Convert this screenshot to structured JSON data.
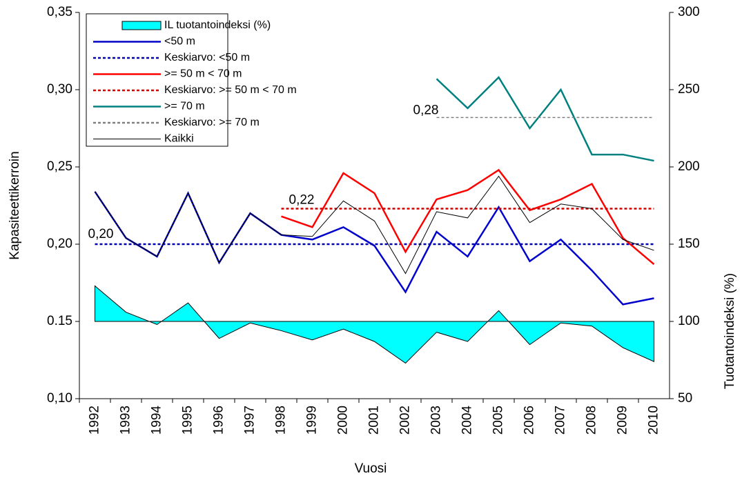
{
  "chart_data": {
    "type": "line",
    "categories": [
      "1992",
      "1993",
      "1994",
      "1995",
      "1996",
      "1997",
      "1998",
      "1999",
      "2000",
      "2001",
      "2002",
      "2003",
      "2004",
      "2005",
      "2006",
      "2007",
      "2008",
      "2009",
      "2010"
    ],
    "ylabel": "Kapasiteettikerroin",
    "y2label": "Tuotantoindeksi (%)",
    "xlabel": "Vuosi",
    "ylim": [
      0.1,
      0.35
    ],
    "yticks": [
      {
        "value": 0.1,
        "label": "0,10"
      },
      {
        "value": 0.15,
        "label": "0.15"
      },
      {
        "value": 0.2,
        "label": "0,20"
      },
      {
        "value": 0.25,
        "label": "0,25"
      },
      {
        "value": 0.3,
        "label": "0,30"
      },
      {
        "value": 0.35,
        "label": "0,35"
      }
    ],
    "y2lim": [
      50,
      300
    ],
    "y2ticks": [
      50,
      100,
      150,
      200,
      250,
      300
    ],
    "legend": "top-left",
    "series": [
      {
        "name": "IL tuotantoindeksi (%)",
        "type": "area",
        "axis": "y2",
        "baseline": 100,
        "color": "#00ffff",
        "values": [
          123,
          106,
          98,
          112,
          89,
          99,
          94,
          88,
          95,
          87,
          73,
          93,
          87,
          107,
          85,
          99,
          97,
          83,
          74
        ]
      },
      {
        "name": "<50 m",
        "type": "line",
        "color": "#0000cc",
        "values": [
          0.234,
          0.204,
          0.192,
          0.233,
          0.188,
          0.22,
          0.206,
          0.203,
          0.211,
          0.199,
          0.169,
          0.208,
          0.192,
          0.224,
          0.189,
          0.203,
          0.183,
          0.161,
          0.165
        ]
      },
      {
        "name": "Keskiarvo: <50 m",
        "type": "mean",
        "color": "#0000aa",
        "label": "0,20",
        "values": [
          0.2,
          0.2,
          0.2,
          0.2,
          0.2,
          0.2,
          0.2,
          0.2,
          0.2,
          0.2,
          0.2,
          0.2,
          0.2,
          0.2,
          0.2,
          0.2,
          0.2,
          0.2,
          0.2
        ]
      },
      {
        "name": ">= 50 m < 70 m",
        "type": "line",
        "color": "#ff0000",
        "values": [
          null,
          null,
          null,
          null,
          null,
          null,
          0.218,
          0.211,
          0.246,
          0.233,
          0.195,
          0.229,
          0.235,
          0.248,
          0.222,
          0.229,
          0.239,
          0.204,
          0.187
        ]
      },
      {
        "name": "Keskiarvo: >= 50 m < 70 m",
        "type": "mean",
        "color": "#cc0000",
        "label": "0,22",
        "values": [
          null,
          null,
          null,
          null,
          null,
          null,
          0.223,
          0.223,
          0.223,
          0.223,
          0.223,
          0.223,
          0.223,
          0.223,
          0.223,
          0.223,
          0.223,
          0.223,
          0.223
        ]
      },
      {
        "name": ">= 70 m",
        "type": "line",
        "color": "#008080",
        "values": [
          null,
          null,
          null,
          null,
          null,
          null,
          null,
          null,
          null,
          null,
          null,
          0.307,
          0.288,
          0.308,
          0.275,
          0.3,
          0.258,
          0.258,
          0.254
        ]
      },
      {
        "name": "Keskiarvo: >= 70 m",
        "type": "mean",
        "color": "#808080",
        "label": "0,28",
        "values": [
          null,
          null,
          null,
          null,
          null,
          null,
          null,
          null,
          null,
          null,
          null,
          0.282,
          0.282,
          0.282,
          0.282,
          0.282,
          0.282,
          0.282,
          0.282
        ]
      },
      {
        "name": "Kaikki",
        "type": "line",
        "color": "#000000",
        "thin": true,
        "values": [
          0.234,
          0.204,
          0.192,
          0.233,
          0.188,
          0.22,
          0.206,
          0.205,
          0.228,
          0.215,
          0.181,
          0.221,
          0.217,
          0.244,
          0.214,
          0.226,
          0.223,
          0.203,
          0.196
        ]
      }
    ]
  }
}
